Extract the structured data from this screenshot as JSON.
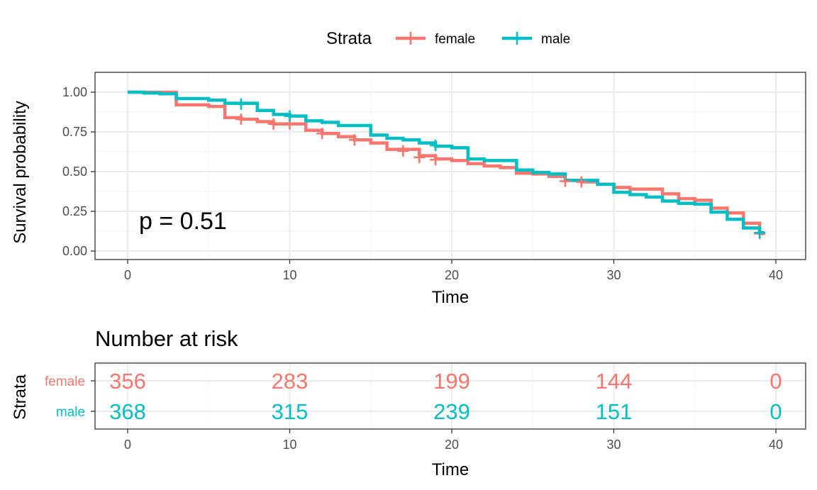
{
  "chart_data": [
    {
      "type": "line",
      "subtype": "kaplan-meier",
      "title": "",
      "xlabel": "Time",
      "ylabel": "Survival probability",
      "xlim": [
        0,
        40
      ],
      "ylim": [
        0,
        1
      ],
      "x_ticks": [
        0,
        10,
        20,
        30,
        40
      ],
      "y_ticks": [
        0.0,
        0.25,
        0.5,
        0.75,
        1.0
      ],
      "y_tick_labels": [
        "0.00",
        "0.25",
        "0.50",
        "0.75",
        "1.00"
      ],
      "grid": true,
      "legend": {
        "title": "Strata",
        "placement": "top"
      },
      "annotation": "p = 0.51",
      "series": [
        {
          "name": "female",
          "color": "#F8766D",
          "steps": [
            [
              0,
              1.0
            ],
            [
              3,
              0.92
            ],
            [
              5,
              0.91
            ],
            [
              6,
              0.84
            ],
            [
              7,
              0.83
            ],
            [
              8,
              0.815
            ],
            [
              9,
              0.8
            ],
            [
              11,
              0.76
            ],
            [
              12,
              0.74
            ],
            [
              13,
              0.72
            ],
            [
              14,
              0.7
            ],
            [
              15,
              0.68
            ],
            [
              16,
              0.64
            ],
            [
              18,
              0.6
            ],
            [
              19,
              0.58
            ],
            [
              20,
              0.57
            ],
            [
              21,
              0.55
            ],
            [
              22,
              0.535
            ],
            [
              23,
              0.525
            ],
            [
              24,
              0.49
            ],
            [
              25,
              0.485
            ],
            [
              26,
              0.47
            ],
            [
              27,
              0.445
            ],
            [
              28,
              0.435
            ],
            [
              29,
              0.42
            ],
            [
              30,
              0.4
            ],
            [
              31,
              0.39
            ],
            [
              32,
              0.39
            ],
            [
              33,
              0.36
            ],
            [
              34,
              0.33
            ],
            [
              35,
              0.32
            ],
            [
              36,
              0.27
            ],
            [
              37,
              0.24
            ],
            [
              38,
              0.175
            ],
            [
              39,
              0.11
            ]
          ],
          "censored": [
            [
              7,
              0.83
            ],
            [
              9,
              0.8
            ],
            [
              10,
              0.8
            ],
            [
              12,
              0.74
            ],
            [
              14,
              0.7
            ],
            [
              17,
              0.63
            ],
            [
              18,
              0.59
            ],
            [
              19,
              0.575
            ],
            [
              27,
              0.44
            ],
            [
              28,
              0.435
            ],
            [
              39,
              0.11
            ]
          ]
        },
        {
          "name": "male",
          "color": "#00BFC4",
          "steps": [
            [
              0,
              1.0
            ],
            [
              1,
              0.995
            ],
            [
              2,
              0.99
            ],
            [
              3,
              0.96
            ],
            [
              5,
              0.95
            ],
            [
              6,
              0.93
            ],
            [
              8,
              0.885
            ],
            [
              9,
              0.86
            ],
            [
              10,
              0.85
            ],
            [
              11,
              0.82
            ],
            [
              12,
              0.81
            ],
            [
              13,
              0.79
            ],
            [
              15,
              0.73
            ],
            [
              16,
              0.71
            ],
            [
              17,
              0.7
            ],
            [
              18,
              0.68
            ],
            [
              19,
              0.66
            ],
            [
              20,
              0.65
            ],
            [
              21,
              0.58
            ],
            [
              22,
              0.57
            ],
            [
              24,
              0.51
            ],
            [
              25,
              0.495
            ],
            [
              26,
              0.485
            ],
            [
              27,
              0.445
            ],
            [
              29,
              0.42
            ],
            [
              30,
              0.37
            ],
            [
              31,
              0.355
            ],
            [
              32,
              0.34
            ],
            [
              33,
              0.315
            ],
            [
              34,
              0.3
            ],
            [
              35,
              0.295
            ],
            [
              36,
              0.245
            ],
            [
              37,
              0.2
            ],
            [
              38,
              0.145
            ],
            [
              39,
              0.115
            ]
          ],
          "censored": [
            [
              7,
              0.925
            ],
            [
              10,
              0.85
            ],
            [
              19,
              0.665
            ],
            [
              39,
              0.115
            ]
          ]
        }
      ]
    },
    {
      "type": "table",
      "title": "Number at risk",
      "xlabel": "Time",
      "ylabel": "Strata",
      "xlim": [
        0,
        40
      ],
      "x_ticks": [
        0,
        10,
        20,
        30,
        40
      ],
      "rows": [
        {
          "name": "female",
          "color": "#F8766D",
          "values": [
            356,
            283,
            199,
            144,
            0
          ]
        },
        {
          "name": "male",
          "color": "#00BFC4",
          "values": [
            368,
            315,
            239,
            151,
            0
          ]
        }
      ]
    }
  ]
}
